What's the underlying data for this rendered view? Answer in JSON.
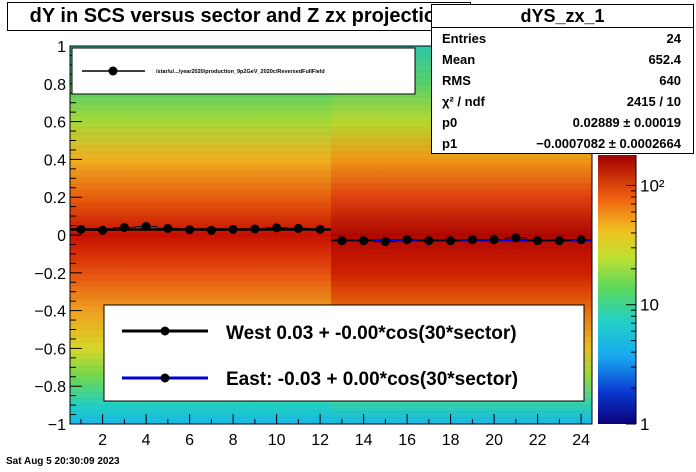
{
  "title": "dY in SCS versus sector and Z zx projection",
  "stats": {
    "name": "dYS_zx_1",
    "rows": [
      {
        "key": "Entries",
        "value": "24"
      },
      {
        "key": "Mean",
        "value": "652.4"
      },
      {
        "key": "RMS",
        "value": "640"
      },
      {
        "key": "χ² / ndf",
        "value": "2415 / 10"
      },
      {
        "key": "p0",
        "value": "0.02889 ± 0.00019"
      },
      {
        "key": "p1",
        "value": "−0.0007082 ± 0.0002664"
      }
    ]
  },
  "timestamp": "Sat Aug  5 20:30:09 2023",
  "colors": {
    "west": "#000000",
    "east": "#0000cc",
    "fit": "#0000ff"
  },
  "chart_data": {
    "type": "scatter",
    "title": "dY in SCS versus sector and Z zx projection",
    "xlim": [
      0.5,
      24.5
    ],
    "ylim": [
      -1,
      1
    ],
    "x_ticks": [
      2,
      4,
      6,
      8,
      10,
      12,
      14,
      16,
      18,
      20,
      22,
      24
    ],
    "y_ticks": [
      -1,
      -0.8,
      -0.6,
      -0.4,
      -0.2,
      0,
      0.2,
      0.4,
      0.6,
      0.8,
      1
    ],
    "z_scale": "log",
    "z_ticks": [
      "1",
      "10",
      "10²"
    ],
    "x": [
      1,
      2,
      3,
      4,
      5,
      6,
      7,
      8,
      9,
      10,
      11,
      12,
      13,
      14,
      15,
      16,
      17,
      18,
      19,
      20,
      21,
      22,
      23,
      24
    ],
    "series": [
      {
        "name": "/star/u/.../year2020/production_9p2GeV_2020c/ReversedFullField",
        "y": [
          0.03,
          0.025,
          0.04,
          0.045,
          0.035,
          0.028,
          0.025,
          0.03,
          0.032,
          0.038,
          0.035,
          0.03,
          -0.03,
          -0.03,
          -0.035,
          -0.025,
          -0.03,
          -0.03,
          -0.025,
          -0.025,
          -0.015,
          -0.03,
          -0.03,
          -0.025
        ]
      }
    ],
    "fits": [
      {
        "label": "West  0.03 + -0.00*cos(30*sector)",
        "x_range": [
          0.5,
          12.5
        ],
        "y": 0.029
      },
      {
        "label": "East: -0.03 +  0.00*cos(30*sector)",
        "x_range": [
          12.5,
          24.5
        ],
        "y": -0.028
      }
    ],
    "legend_top": "/star/u/.../year2020/production_9p2GeV_2020c/ReversedFullField",
    "legend_placement": "top-left"
  }
}
